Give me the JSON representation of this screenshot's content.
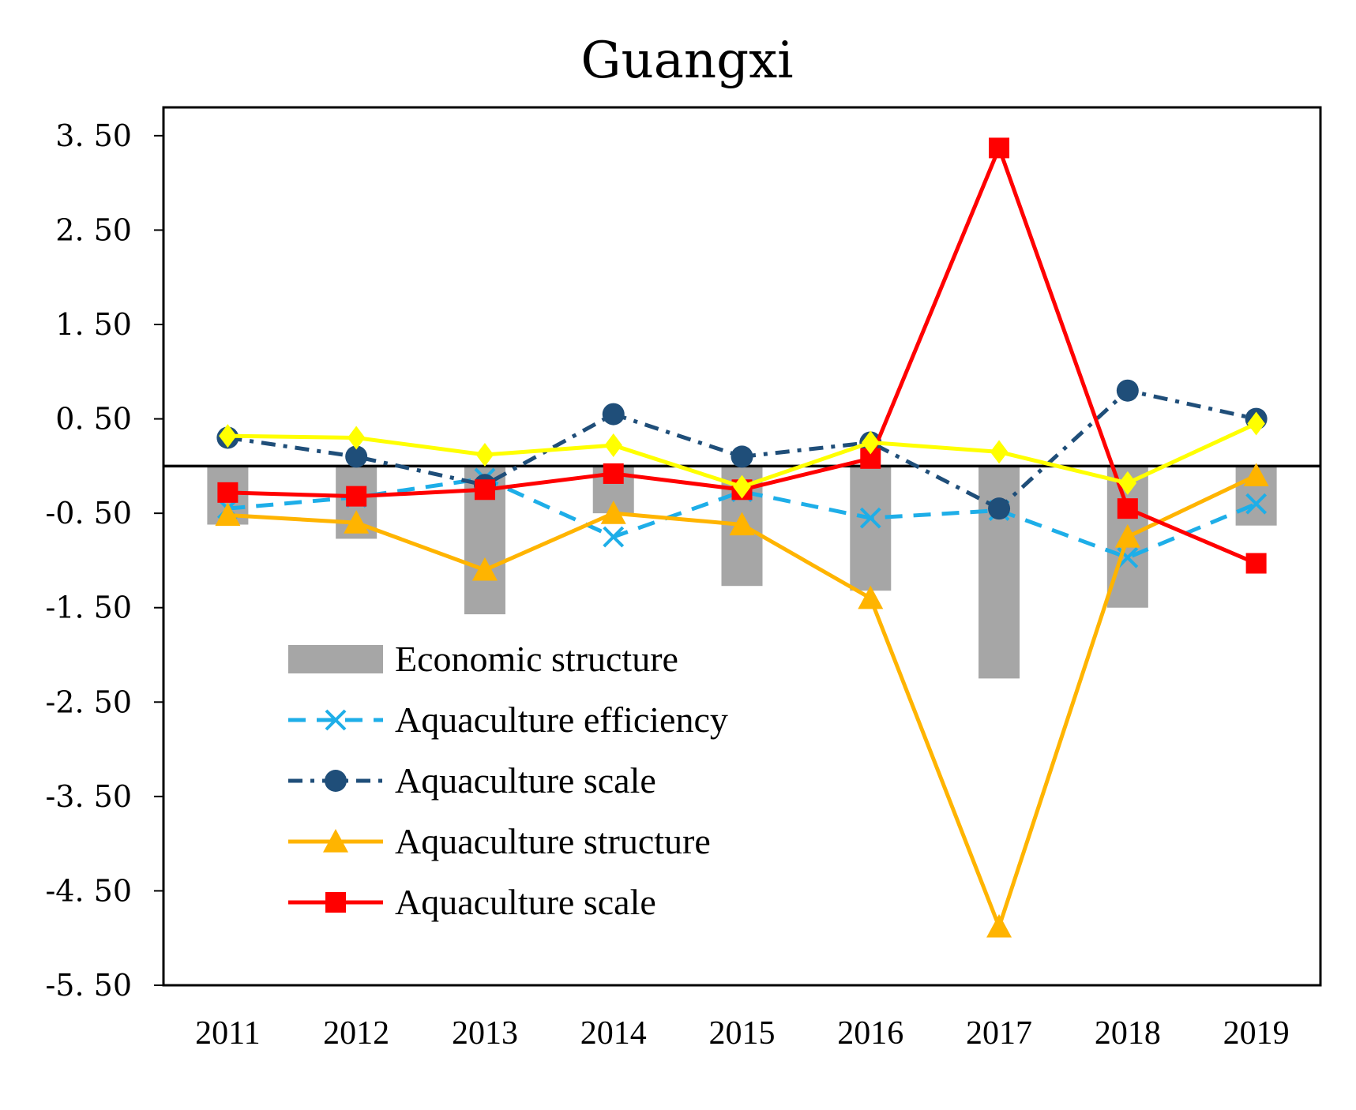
{
  "chart_data": {
    "type": "bar+line",
    "title": "Guangxi",
    "xlabel": "",
    "ylabel": "",
    "categories": [
      "2011",
      "2012",
      "2013",
      "2014",
      "2015",
      "2016",
      "2017",
      "2018",
      "2019"
    ],
    "ylim": [
      -5.5,
      3.8
    ],
    "yticks": [
      3.5,
      2.5,
      1.5,
      0.5,
      -0.5,
      -1.5,
      -2.5,
      -3.5,
      -4.5,
      -5.5
    ],
    "ytick_labels": [
      "3. 50",
      "2. 50",
      "1. 50",
      "0. 50",
      "-0. 50",
      "-1. 50",
      "-2. 50",
      "-3. 50",
      "-4. 50",
      "-5. 50"
    ],
    "legend_position": "lower-left",
    "series": [
      {
        "name": "Economic structure",
        "kind": "bar",
        "color": "#a6a6a6",
        "values": [
          -0.62,
          -0.77,
          -1.57,
          -0.5,
          -1.27,
          -1.32,
          -2.25,
          -1.5,
          -0.63
        ]
      },
      {
        "name": "Aquaculture efficiency",
        "kind": "line",
        "style": "dashed",
        "marker": "x",
        "color": "#1eaee8",
        "values": [
          -0.45,
          -0.33,
          -0.13,
          -0.75,
          -0.27,
          -0.55,
          -0.47,
          -0.97,
          -0.4
        ]
      },
      {
        "name": "Aquaculture scale",
        "kind": "line",
        "style": "dashed-dot",
        "marker": "circle",
        "color": "#1f4e79",
        "values": [
          0.3,
          0.1,
          -0.2,
          0.55,
          0.1,
          0.25,
          -0.45,
          0.8,
          0.5
        ]
      },
      {
        "name": "Aquaculture structure",
        "kind": "line",
        "style": "solid",
        "marker": "triangle",
        "color": "#ffb400",
        "values": [
          -0.52,
          -0.6,
          -1.1,
          -0.5,
          -0.62,
          -1.4,
          -4.88,
          -0.75,
          -0.1
        ]
      },
      {
        "name": "Aquaculture scale",
        "kind": "line",
        "style": "solid",
        "marker": "square",
        "color": "#ff0000",
        "values": [
          -0.28,
          -0.32,
          -0.25,
          -0.08,
          -0.25,
          0.08,
          3.37,
          -0.45,
          -1.03
        ]
      },
      {
        "name": "",
        "kind": "line",
        "style": "solid",
        "marker": "diamond",
        "color": "#ffff00",
        "in_legend": false,
        "values": [
          0.32,
          0.3,
          0.12,
          0.22,
          -0.22,
          0.25,
          0.15,
          -0.18,
          0.45
        ]
      }
    ]
  }
}
